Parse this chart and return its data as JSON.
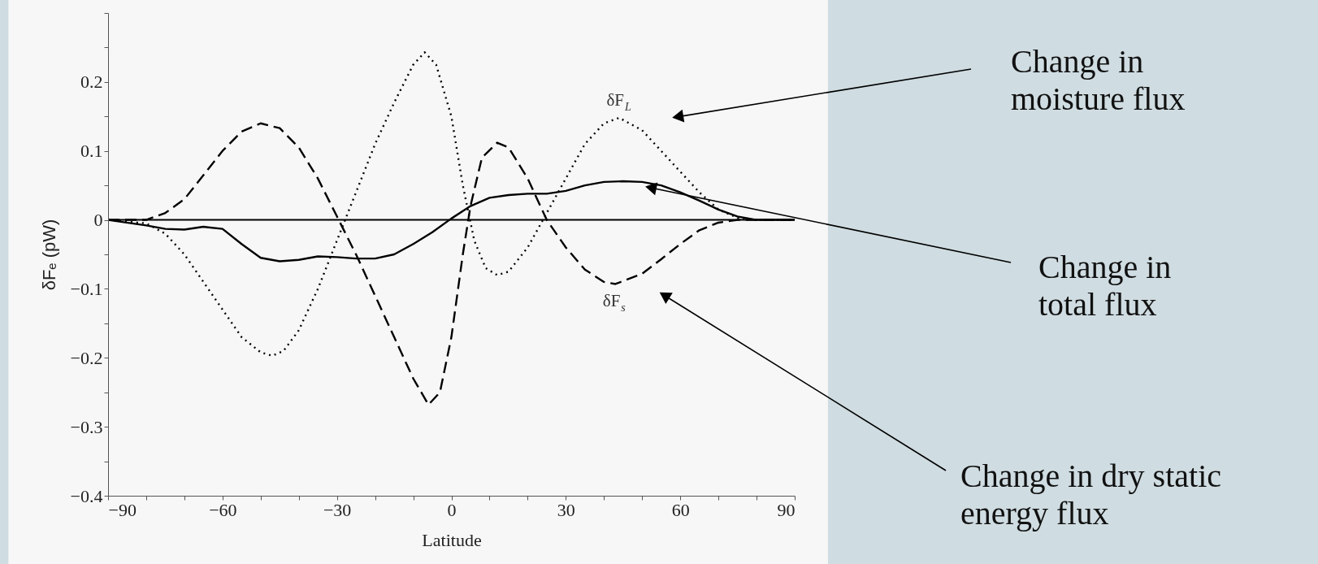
{
  "chart_data": {
    "type": "line",
    "xlabel": "Latitude",
    "ylabel": "δFₑ (pW)",
    "xlim": [
      -90,
      90
    ],
    "ylim": [
      -0.4,
      0.3
    ],
    "xticks": [
      -90,
      {
        "value": -80,
        "label": null
      },
      {
        "value": -70,
        "label": null
      },
      -60,
      {
        "value": -50,
        "label": null
      },
      {
        "value": -40,
        "label": null
      },
      -30,
      {
        "value": -20,
        "label": null
      },
      {
        "value": -10,
        "label": null
      },
      0,
      {
        "value": 10,
        "label": null
      },
      {
        "value": 20,
        "label": null
      },
      30,
      {
        "value": 40,
        "label": null
      },
      {
        "value": 50,
        "label": null
      },
      60,
      {
        "value": 70,
        "label": null
      },
      {
        "value": 80,
        "label": null
      },
      90
    ],
    "yticks": [
      -0.4,
      {
        "value": -0.35,
        "label": null
      },
      -0.3,
      {
        "value": -0.25,
        "label": null
      },
      -0.2,
      {
        "value": -0.15,
        "label": null
      },
      -0.1,
      {
        "value": -0.05,
        "label": null
      },
      0,
      {
        "value": 0.05,
        "label": null
      },
      0.1,
      {
        "value": 0.15,
        "label": null
      },
      0.2,
      {
        "value": 0.25,
        "label": null
      },
      {
        "value": 0.3,
        "label": null
      }
    ],
    "grid": false,
    "series": [
      {
        "name": "δF$_{L}$",
        "color": "#000000",
        "line_style": "dotted",
        "x": [
          -90,
          -80,
          -75,
          -70,
          -65,
          -60,
          -55,
          -50,
          -47,
          -44,
          -40,
          -35,
          -30,
          -25,
          -20,
          -15,
          -10,
          -7,
          -4,
          0,
          3,
          6,
          9,
          12,
          15,
          20,
          25,
          30,
          35,
          40,
          44,
          50,
          55,
          60,
          65,
          70,
          75,
          80,
          90
        ],
        "values": [
          0,
          -0.005,
          -0.02,
          -0.05,
          -0.09,
          -0.13,
          -0.17,
          -0.192,
          -0.197,
          -0.19,
          -0.16,
          -0.1,
          -0.03,
          0.04,
          0.11,
          0.17,
          0.225,
          0.243,
          0.225,
          0.15,
          0.05,
          -0.03,
          -0.07,
          -0.08,
          -0.075,
          -0.04,
          0.01,
          0.06,
          0.11,
          0.14,
          0.148,
          0.13,
          0.1,
          0.07,
          0.04,
          0.015,
          0.003,
          0,
          0
        ]
      },
      {
        "name": "δF$_{s}$",
        "color": "#000000",
        "line_style": "dashed",
        "x": [
          -90,
          -80,
          -75,
          -70,
          -65,
          -60,
          -55,
          -50,
          -45,
          -40,
          -35,
          -30,
          -25,
          -20,
          -15,
          -10,
          -6,
          -3,
          0,
          3,
          5,
          8,
          12,
          15,
          20,
          25,
          30,
          35,
          40,
          43,
          50,
          55,
          60,
          65,
          70,
          75,
          90
        ],
        "values": [
          0,
          0,
          0.01,
          0.03,
          0.065,
          0.1,
          0.128,
          0.14,
          0.133,
          0.105,
          0.06,
          0.005,
          -0.05,
          -0.11,
          -0.17,
          -0.23,
          -0.268,
          -0.25,
          -0.17,
          -0.05,
          0.02,
          0.09,
          0.112,
          0.105,
          0.06,
          0,
          -0.04,
          -0.072,
          -0.09,
          -0.093,
          -0.078,
          -0.057,
          -0.035,
          -0.015,
          -0.004,
          0,
          0
        ]
      },
      {
        "color": "#000000",
        "line_style": "solid",
        "x": [
          -90,
          -80,
          -75,
          -70,
          -65,
          -60,
          -55,
          -50,
          -45,
          -40,
          -35,
          -30,
          -25,
          -20,
          -15,
          -10,
          -5,
          0,
          5,
          10,
          15,
          20,
          25,
          30,
          35,
          40,
          45,
          50,
          55,
          60,
          65,
          70,
          75,
          80,
          90
        ],
        "values": [
          0,
          -0.008,
          -0.013,
          -0.014,
          -0.01,
          -0.013,
          -0.035,
          -0.055,
          -0.06,
          -0.058,
          -0.053,
          -0.054,
          -0.056,
          -0.056,
          -0.05,
          -0.035,
          -0.018,
          0.002,
          0.02,
          0.032,
          0.036,
          0.038,
          0.038,
          0.042,
          0.05,
          0.055,
          0.056,
          0.055,
          0.05,
          0.04,
          0.028,
          0.015,
          0.005,
          0,
          0
        ]
      }
    ],
    "ref_lines": [
      {
        "axis": "y",
        "value": 0,
        "color": "#000000",
        "line_style": "solid"
      }
    ],
    "annotations": [
      "Change in\nmoisture flux",
      "Change in\ntotal flux",
      "Change in dry static\nenergy flux"
    ]
  }
}
